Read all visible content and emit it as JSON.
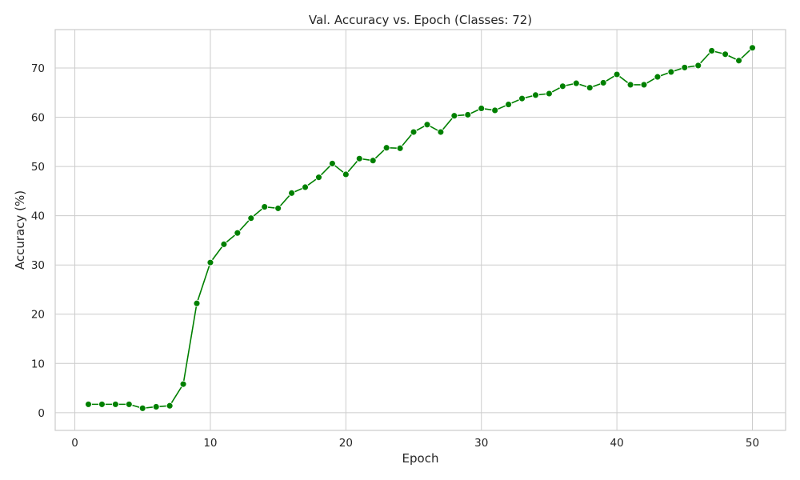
{
  "chart_data": {
    "type": "line",
    "title": "Val. Accuracy vs. Epoch (Classes: 72)",
    "xlabel": "Epoch",
    "ylabel": "Accuracy (%)",
    "xlim": [
      -1.45,
      52.45
    ],
    "ylim": [
      -3.6,
      77.8
    ],
    "xticks": [
      0,
      10,
      20,
      30,
      40,
      50
    ],
    "yticks": [
      0,
      10,
      20,
      30,
      40,
      50,
      60,
      70
    ],
    "grid": true,
    "color": "#008000",
    "marker": "circle",
    "x": [
      1,
      2,
      3,
      4,
      5,
      6,
      7,
      8,
      9,
      10,
      11,
      12,
      13,
      14,
      15,
      16,
      17,
      18,
      19,
      20,
      21,
      22,
      23,
      24,
      25,
      26,
      27,
      28,
      29,
      30,
      31,
      32,
      33,
      34,
      35,
      36,
      37,
      38,
      39,
      40,
      41,
      42,
      43,
      44,
      45,
      46,
      47,
      48,
      49,
      50
    ],
    "values": [
      1.7,
      1.7,
      1.7,
      1.7,
      0.9,
      1.2,
      1.4,
      5.8,
      22.2,
      30.5,
      34.2,
      36.5,
      39.5,
      41.8,
      41.5,
      44.6,
      45.8,
      47.8,
      50.6,
      48.4,
      51.6,
      51.2,
      53.8,
      53.7,
      57.0,
      58.5,
      57.0,
      60.3,
      60.5,
      61.8,
      61.4,
      62.6,
      63.8,
      64.5,
      64.8,
      66.3,
      66.9,
      66.0,
      67.0,
      68.7,
      66.6,
      66.6,
      68.2,
      69.2,
      70.1,
      70.5,
      73.5,
      72.8,
      71.5,
      74.1
    ]
  }
}
